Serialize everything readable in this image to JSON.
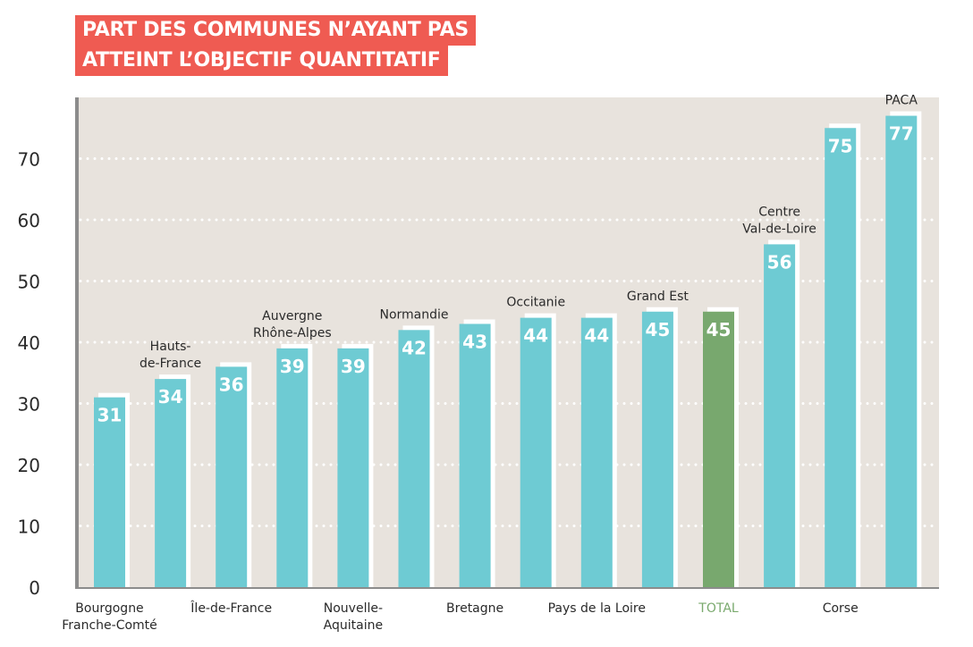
{
  "title_lines": [
    "PART DES COMMUNES N’AYANT PAS",
    "ATTEINT L’OBJECTIF QUANTITATIF"
  ],
  "colors": {
    "title_bg": "#ef5b52",
    "plot_bg": "#e8e3dd",
    "bar": "#6ecbd3",
    "bar_total": "#78a86e",
    "total_label": "#7aaa6e",
    "axis": "#8c8c8c",
    "text": "#2a2a2a"
  },
  "chart_data": {
    "type": "bar",
    "title": "PART DES COMMUNES N’AYANT PAS ATTEINT L’OBJECTIF QUANTITATIF",
    "xlabel": "",
    "ylabel": "",
    "ylim": [
      0,
      80
    ],
    "yticks": [
      0,
      10,
      20,
      30,
      40,
      50,
      60,
      70
    ],
    "grid": "horizontal dotted",
    "categories": [
      "Bourgogne Franche-Comté",
      "Hauts-de-France",
      "Île-de-France",
      "Auvergne Rhône-Alpes",
      "Nouvelle-Aquitaine",
      "Normandie",
      "Bretagne",
      "Occitanie",
      "Pays de la Loire",
      "Grand Est",
      "TOTAL",
      "Centre Val-de-Loire",
      "Corse",
      "PACA"
    ],
    "values": [
      31,
      34,
      36,
      39,
      39,
      42,
      43,
      44,
      44,
      45,
      45,
      56,
      75,
      77
    ],
    "value_labels": [
      "31",
      "34",
      "36",
      "39",
      "39",
      "42",
      "43",
      "44",
      "44",
      "45",
      "45",
      "56",
      "75",
      "77"
    ],
    "highlight": "TOTAL",
    "bottom_labels": [
      {
        "index": 0,
        "lines": [
          "Bourgogne",
          "Franche-Comté"
        ]
      },
      {
        "index": 2,
        "lines": [
          "Île-de-France"
        ]
      },
      {
        "index": 4,
        "lines": [
          "Nouvelle-",
          "Aquitaine"
        ]
      },
      {
        "index": 6,
        "lines": [
          "Bretagne"
        ]
      },
      {
        "index": 8,
        "lines": [
          "Pays de la Loire"
        ]
      },
      {
        "index": 10,
        "lines": [
          "TOTAL"
        ]
      },
      {
        "index": 12,
        "lines": [
          "Corse"
        ]
      }
    ],
    "top_labels": [
      {
        "index": 1,
        "lines": [
          "Hauts-",
          "de-France"
        ]
      },
      {
        "index": 3,
        "lines": [
          "Auvergne",
          "Rhône-Alpes"
        ]
      },
      {
        "index": 5,
        "lines": [
          "Normandie"
        ]
      },
      {
        "index": 7,
        "lines": [
          "Occitanie"
        ]
      },
      {
        "index": 9,
        "lines": [
          "Grand Est"
        ]
      },
      {
        "index": 11,
        "lines": [
          "Centre",
          "Val-de-Loire"
        ]
      },
      {
        "index": 13,
        "lines": [
          "PACA"
        ]
      }
    ]
  }
}
